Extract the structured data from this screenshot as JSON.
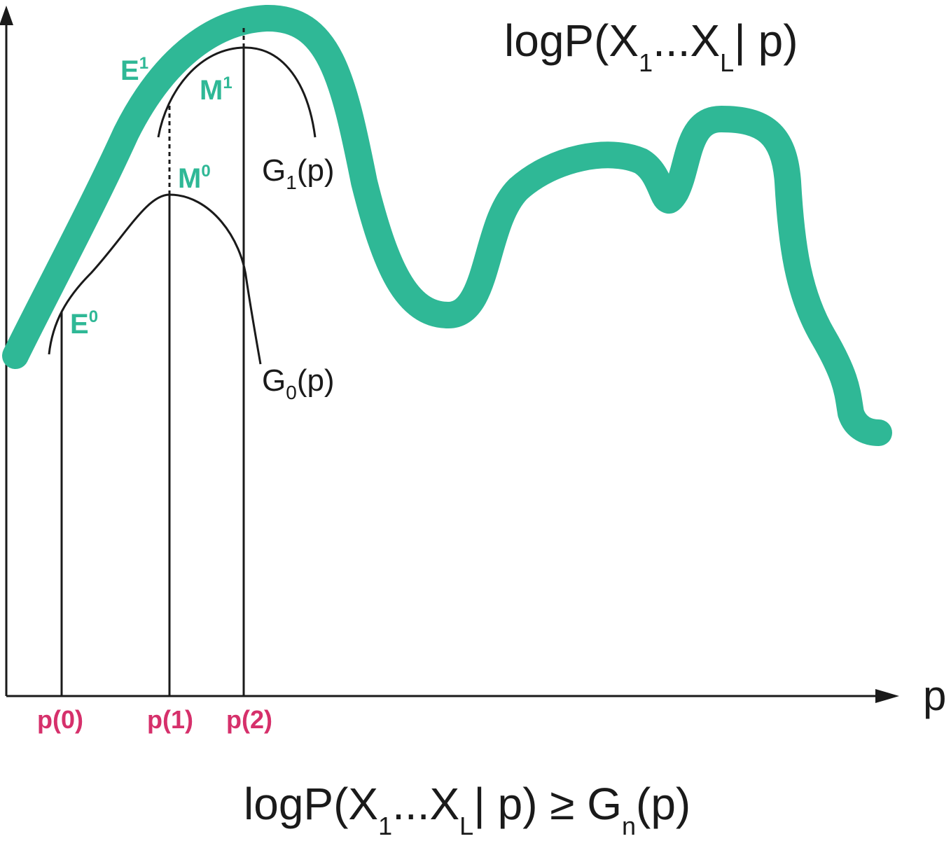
{
  "figure": {
    "top_formula": {
      "main": "logP(X",
      "sub1": "1",
      "dots": "...X",
      "subL": "L",
      "tail": "| p)"
    },
    "bottom_formula": {
      "main": "logP(X",
      "sub1": "1",
      "dots": "...X",
      "subL": "L",
      "mid": "| p) ≥ G",
      "subn": "n",
      "tail": "(p)"
    },
    "x_axis_label": "p",
    "curve_labels": {
      "g1": {
        "base": "G",
        "sub": "1",
        "tail": "(p)"
      },
      "g0": {
        "base": "G",
        "sub": "0",
        "tail": "(p)"
      }
    },
    "point_labels": {
      "e0": {
        "base": "E",
        "sup": "0"
      },
      "m0": {
        "base": "M",
        "sup": "0"
      },
      "e1": {
        "base": "E",
        "sup": "1"
      },
      "m1": {
        "base": "M",
        "sup": "1"
      }
    },
    "tick_labels": [
      "p(0)",
      "p(1)",
      "p(2)"
    ],
    "colors": {
      "likelihood_curve": "#2fb896",
      "point_labels": "#2fb896",
      "tick_labels": "#d6306b",
      "ink": "#1a1a1a"
    }
  }
}
